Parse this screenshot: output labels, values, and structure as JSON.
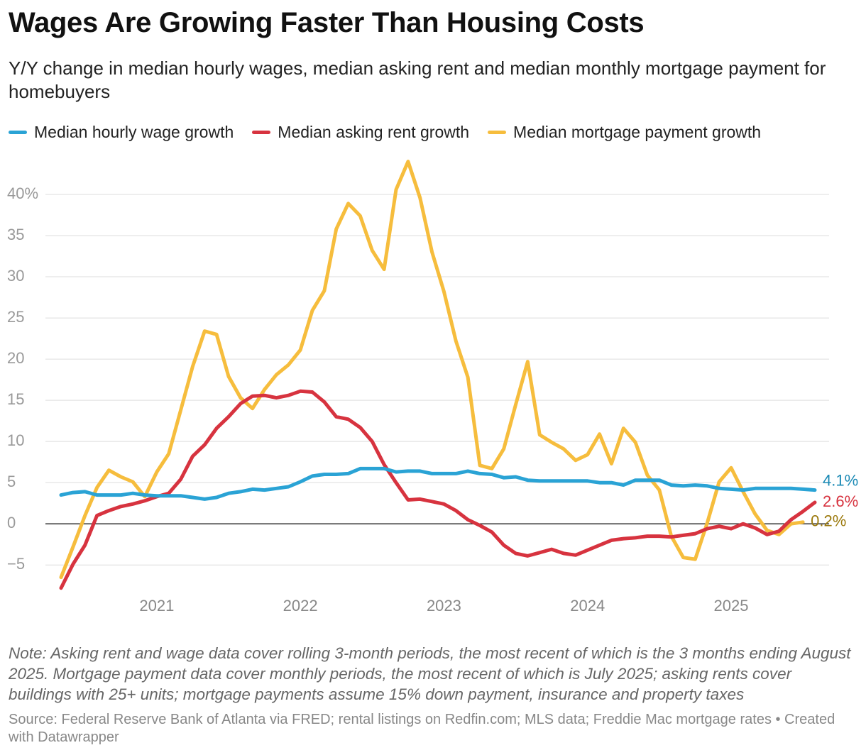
{
  "chart_data": {
    "type": "line",
    "title": "Wages Are Growing Faster Than Housing Costs",
    "subtitle": "Y/Y change in median hourly wages, median asking rent and median monthly mortgage payment for homebuyers",
    "note": "Note: Asking rent and wage data cover rolling 3-month periods, the most recent of which is the 3 months ending August 2025. Mortgage payment data cover monthly periods, the most recent of which is July 2025; asking rents cover buildings with 25+ units; mortgage payments assume 15% down payment, insurance and property taxes",
    "source": "Source: Federal Reserve Bank of Atlanta via FRED; rental listings on Redfin.com; MLS data; Freddie Mac mortgage rates • Created with Datawrapper",
    "categories": [
      null,
      null,
      null,
      null,
      null,
      null,
      null,
      null,
      "2021",
      null,
      null,
      null,
      null,
      null,
      null,
      null,
      null,
      null,
      null,
      null,
      "2022",
      null,
      null,
      null,
      null,
      null,
      null,
      null,
      null,
      null,
      null,
      null,
      "2023",
      null,
      null,
      null,
      null,
      null,
      null,
      null,
      null,
      null,
      null,
      null,
      "2024",
      null,
      null,
      null,
      null,
      null,
      null,
      null,
      null,
      null,
      null,
      null,
      "2025",
      null,
      null,
      null,
      null,
      null,
      null,
      null
    ],
    "series": [
      {
        "name": "Median hourly wage growth",
        "color": "#2aa3d5",
        "label_color": "#1b8ab5",
        "values": [
          3.5,
          3.8,
          3.9,
          3.5,
          3.5,
          3.5,
          3.7,
          3.5,
          3.4,
          3.4,
          3.4,
          3.2,
          3.0,
          3.2,
          3.7,
          3.9,
          4.2,
          4.1,
          4.3,
          4.5,
          5.1,
          5.8,
          6.0,
          6.0,
          6.1,
          6.7,
          6.7,
          6.7,
          6.3,
          6.4,
          6.4,
          6.1,
          6.1,
          6.1,
          6.4,
          6.1,
          6.0,
          5.6,
          5.7,
          5.3,
          5.2,
          5.2,
          5.2,
          5.2,
          5.2,
          5.0,
          5.0,
          4.7,
          5.3,
          5.3,
          5.3,
          4.7,
          4.6,
          4.7,
          4.6,
          4.3,
          4.2,
          4.1,
          4.3,
          4.3,
          4.3,
          4.3,
          4.2,
          4.1
        ],
        "value_labels": [
          null,
          null,
          null,
          null,
          null,
          null,
          null,
          null,
          null,
          null,
          null,
          null,
          null,
          null,
          null,
          null,
          null,
          null,
          null,
          null,
          null,
          null,
          null,
          null,
          null,
          null,
          null,
          null,
          null,
          null,
          null,
          null,
          null,
          null,
          null,
          null,
          null,
          null,
          null,
          null,
          null,
          null,
          null,
          null,
          null,
          null,
          null,
          null,
          null,
          null,
          null,
          null,
          null,
          null,
          null,
          null,
          null,
          null,
          null,
          null,
          null,
          null,
          null,
          "4.1%"
        ]
      },
      {
        "name": "Median asking rent growth",
        "color": "#d7333f",
        "label_color": "#d7333f",
        "values": [
          -7.8,
          -4.9,
          -2.6,
          1.0,
          1.6,
          2.1,
          2.4,
          2.8,
          3.3,
          3.7,
          5.4,
          8.2,
          9.6,
          11.6,
          13.0,
          14.6,
          15.5,
          15.6,
          15.3,
          15.6,
          16.1,
          16.0,
          14.8,
          13.0,
          12.7,
          11.7,
          10.0,
          7.2,
          5.0,
          2.9,
          3.0,
          2.7,
          2.4,
          1.6,
          0.5,
          -0.2,
          -1.0,
          -2.6,
          -3.6,
          -3.9,
          -3.5,
          -3.1,
          -3.6,
          -3.8,
          -3.2,
          -2.6,
          -2.0,
          -1.8,
          -1.7,
          -1.5,
          -1.5,
          -1.6,
          -1.4,
          -1.2,
          -0.6,
          -0.3,
          -0.6,
          0.0,
          -0.5,
          -1.3,
          -0.9,
          0.5,
          1.5,
          2.6
        ],
        "value_labels": [
          null,
          null,
          null,
          null,
          null,
          null,
          null,
          null,
          null,
          null,
          null,
          null,
          null,
          null,
          null,
          null,
          null,
          null,
          null,
          null,
          null,
          null,
          null,
          null,
          null,
          null,
          null,
          null,
          null,
          null,
          null,
          null,
          null,
          null,
          null,
          null,
          null,
          null,
          null,
          null,
          null,
          null,
          null,
          null,
          null,
          null,
          null,
          null,
          null,
          null,
          null,
          null,
          null,
          null,
          null,
          null,
          null,
          null,
          null,
          null,
          null,
          null,
          null,
          "2.6%"
        ]
      },
      {
        "name": "Median mortgage payment growth",
        "color": "#f6bd3d",
        "label_color": "#9c7a0e",
        "values": [
          -6.5,
          -2.8,
          1.0,
          4.4,
          6.5,
          5.7,
          5.1,
          3.3,
          6.3,
          8.5,
          13.8,
          19.1,
          23.4,
          23.0,
          17.9,
          15.3,
          14.0,
          16.3,
          18.1,
          19.3,
          21.1,
          25.9,
          28.3,
          35.8,
          38.9,
          37.4,
          33.2,
          30.9,
          40.6,
          44.0,
          39.6,
          33.0,
          28.2,
          22.2,
          17.8,
          7.1,
          6.7,
          9.1,
          14.5,
          19.7,
          10.8,
          9.9,
          9.1,
          7.7,
          8.4,
          10.9,
          7.3,
          11.6,
          9.9,
          5.9,
          4.1,
          -1.5,
          -4.1,
          -4.3,
          0.1,
          5.1,
          6.8,
          3.9,
          1.2,
          -0.8,
          -1.3,
          0.0,
          0.2,
          null
        ],
        "value_labels": [
          null,
          null,
          null,
          null,
          null,
          null,
          null,
          null,
          null,
          null,
          null,
          null,
          null,
          null,
          null,
          null,
          null,
          null,
          null,
          null,
          null,
          null,
          null,
          null,
          null,
          null,
          null,
          null,
          null,
          null,
          null,
          null,
          null,
          null,
          null,
          null,
          null,
          null,
          null,
          null,
          null,
          null,
          null,
          null,
          null,
          null,
          null,
          null,
          null,
          null,
          null,
          null,
          null,
          null,
          null,
          null,
          null,
          null,
          null,
          null,
          null,
          null,
          "0.2%",
          null
        ]
      }
    ],
    "ylim": [
      -8,
      45
    ],
    "yticks": [
      {
        "value": -5,
        "label": "−5"
      },
      0,
      5,
      10,
      15,
      20,
      25,
      30,
      35,
      {
        "value": 40,
        "label": "40%"
      }
    ],
    "grid": true,
    "zero_line": true,
    "legend": "top"
  }
}
